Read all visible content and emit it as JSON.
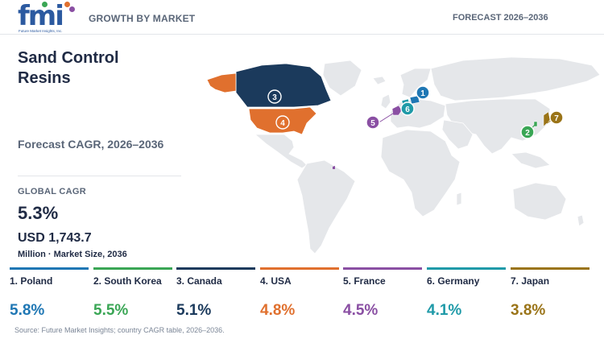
{
  "header": {
    "logo_text": "fmi",
    "logo_tagline": "Future Market Insights, Inc.",
    "left_label": "GROWTH BY MARKET",
    "right_label": "FORECAST 2026–2036"
  },
  "summary": {
    "title_line1": "Sand Control",
    "title_line2": "Resins",
    "subtitle": "Forecast CAGR, 2026–2036",
    "global_cagr_label": "GLOBAL CAGR",
    "global_cagr_value": "5.3%",
    "market_size_value": "USD 1,743.7",
    "market_size_label": "Million · Market Size, 2036"
  },
  "colors": {
    "poland": "#1f77b4",
    "south_korea": "#3aa655",
    "canada": "#1b3a5c",
    "usa": "#e0702e",
    "france": "#8a4fa3",
    "germany": "#1f9aa8",
    "japan": "#9a7418",
    "land": "#e5e7ea"
  },
  "countries": [
    {
      "rank": "1",
      "name": "1. Poland",
      "cagr": "5.8%",
      "color": "#1f77b4"
    },
    {
      "rank": "2",
      "name": "2. South Korea",
      "cagr": "5.5%",
      "color": "#3aa655"
    },
    {
      "rank": "3",
      "name": "3. Canada",
      "cagr": "5.1%",
      "color": "#1b3a5c"
    },
    {
      "rank": "4",
      "name": "4. USA",
      "cagr": "4.8%",
      "color": "#e0702e"
    },
    {
      "rank": "5",
      "name": "5. France",
      "cagr": "4.5%",
      "color": "#8a4fa3"
    },
    {
      "rank": "6",
      "name": "6. Germany",
      "cagr": "4.1%",
      "color": "#1f9aa8"
    },
    {
      "rank": "7",
      "name": "7. Japan",
      "cagr": "3.8%",
      "color": "#9a7418"
    }
  ],
  "footer": {
    "source": "Source: Future Market Insights; country CAGR table, 2026–2036."
  }
}
